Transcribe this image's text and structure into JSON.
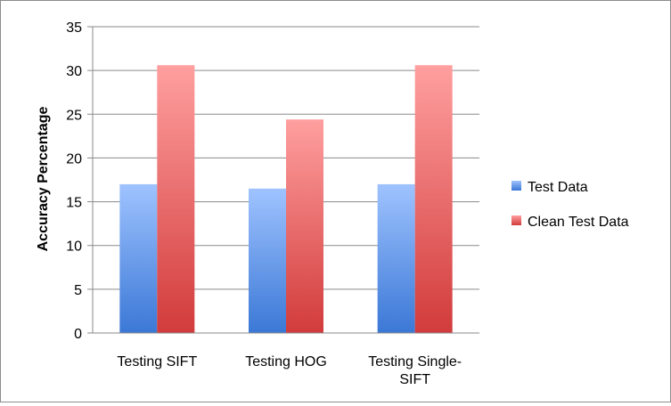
{
  "chart_data": {
    "type": "bar",
    "categories": [
      "Testing SIFT",
      "Testing HOG",
      "Testing Single-SIFT"
    ],
    "category_lines": [
      [
        "Testing SIFT"
      ],
      [
        "Testing HOG"
      ],
      [
        "Testing Single-",
        "SIFT"
      ]
    ],
    "series": [
      {
        "name": "Test Data",
        "values": [
          17.0,
          16.5,
          17.0
        ],
        "color_top": "#9fc3ff",
        "color_bottom": "#3b78d6"
      },
      {
        "name": "Clean Test Data",
        "values": [
          30.6,
          24.4,
          30.6
        ],
        "color_top": "#ff9f9f",
        "color_bottom": "#d23b3b"
      }
    ],
    "title": "",
    "xlabel": "",
    "ylabel": "Accuracy Percentage",
    "ylim": [
      0,
      35
    ],
    "yticks": [
      0,
      5,
      10,
      15,
      20,
      25,
      30,
      35
    ],
    "grid": true,
    "legend_position": "right"
  }
}
